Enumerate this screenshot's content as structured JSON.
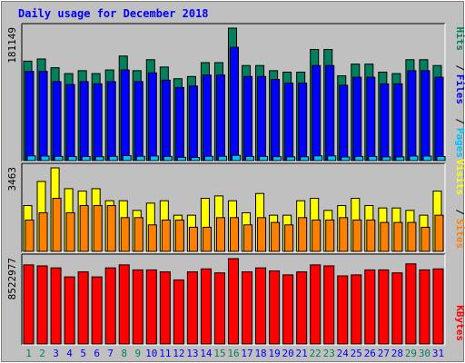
{
  "chart_data": {
    "type": "bar",
    "title": "Daily usage for December 2018",
    "categories": [
      "1",
      "2",
      "3",
      "4",
      "5",
      "6",
      "7",
      "8",
      "9",
      "10",
      "11",
      "12",
      "13",
      "14",
      "15",
      "16",
      "17",
      "18",
      "19",
      "20",
      "21",
      "22",
      "23",
      "24",
      "25",
      "26",
      "27",
      "28",
      "29",
      "30",
      "31"
    ],
    "weekend_days": [
      "1",
      "2",
      "8",
      "9",
      "15",
      "16",
      "22",
      "23",
      "29",
      "30"
    ],
    "panels": [
      {
        "id": "hits-files-pages",
        "max_label": "181149",
        "ymax": 181149,
        "series": [
          {
            "name": "Hits",
            "color": "#00805c",
            "values": [
              136000,
              139000,
              127000,
              119000,
              123000,
              119000,
              124000,
              143000,
              123000,
              138000,
              128000,
              112000,
              115000,
              134000,
              134000,
              181149,
              130000,
              130000,
              123000,
              121000,
              121000,
              152000,
              152000,
              116000,
              132000,
              132000,
              121000,
              119000,
              138000,
              138000,
              130000
            ]
          },
          {
            "name": "Files",
            "color": "#0000ff",
            "values": [
              122000,
              122000,
              108000,
              104000,
              108000,
              105000,
              108000,
              124000,
              108000,
              120000,
              110000,
              100000,
              102000,
              117000,
              117000,
              155000,
              115000,
              115000,
              111000,
              106000,
              106000,
              130000,
              130000,
              103000,
              114000,
              114000,
              105000,
              105000,
              123000,
              123000,
              114000
            ]
          },
          {
            "name": "Pages",
            "color": "#00c0ff",
            "values": [
              6500,
              6200,
              5800,
              5500,
              5600,
              5400,
              5800,
              6800,
              5900,
              6300,
              5700,
              4500,
              4400,
              5900,
              5900,
              7200,
              5700,
              5700,
              5400,
              5200,
              5200,
              6500,
              6500,
              5000,
              5700,
              5700,
              5100,
              5100,
              6200,
              6200,
              5600
            ]
          }
        ],
        "side_labels": [
          "Pages",
          "Files",
          "Hits"
        ]
      },
      {
        "id": "visits-sites",
        "max_label": "3463",
        "ymax": 3463,
        "series": [
          {
            "name": "Visits",
            "color": "#ffff00",
            "values": [
              1900,
              2900,
              3463,
              2600,
              2500,
              2600,
              2100,
              2100,
              1700,
              2000,
              2100,
              1500,
              1500,
              2200,
              2300,
              2100,
              1600,
              2400,
              1500,
              1500,
              2100,
              2200,
              1700,
              1900,
              2200,
              1900,
              1800,
              1800,
              1700,
              1500,
              2500
            ]
          },
          {
            "name": "Sites",
            "color": "#ff8000",
            "values": [
              1300,
              1600,
              2200,
              1600,
              1900,
              1900,
              1900,
              1400,
              1400,
              1100,
              1300,
              1300,
              1000,
              1000,
              1400,
              1400,
              1100,
              1400,
              1200,
              1100,
              1400,
              1300,
              1300,
              1400,
              1300,
              1300,
              1200,
              1200,
              1200,
              1000,
              1500
            ]
          }
        ],
        "side_labels": [
          "Sites",
          "Visits"
        ]
      },
      {
        "id": "kbytes",
        "max_label": "8522977",
        "ymax": 8522977,
        "series": [
          {
            "name": "KBytes",
            "color": "#ff0000",
            "values": [
              7900000,
              7800000,
              7600000,
              6700000,
              7200000,
              6700000,
              7600000,
              7900000,
              7400000,
              7400000,
              7200000,
              6400000,
              7200000,
              7500000,
              7100000,
              8522977,
              7200000,
              7600000,
              7300000,
              6900000,
              7200000,
              7900000,
              7800000,
              6800000,
              6900000,
              7400000,
              7400000,
              7100000,
              8000000,
              7400000,
              7500000
            ]
          }
        ],
        "side_labels": [
          "KBytes"
        ]
      }
    ]
  },
  "colors": {
    "background": "#c0c0c0",
    "title": "#0000ff",
    "weekday_label": "#0000ff",
    "weekend_label": "#00805c",
    "axis_text": "#000000"
  }
}
